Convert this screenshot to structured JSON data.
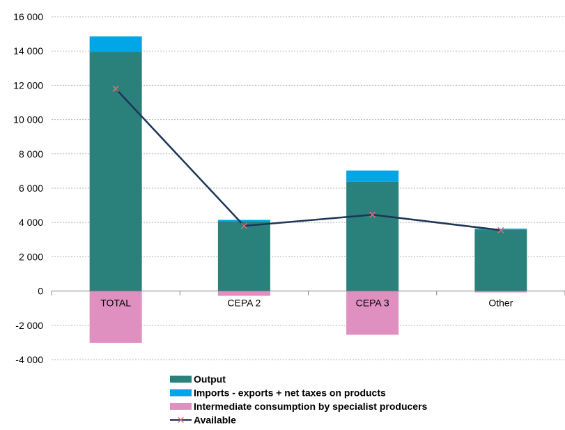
{
  "chart_data": {
    "type": "bar",
    "stacked": true,
    "categories": [
      "TOTAL",
      "CEPA 2",
      "CEPA 3",
      "Other"
    ],
    "series": [
      {
        "name": "Output",
        "kind": "bar",
        "color": "#2a807b",
        "values": [
          13950,
          4050,
          6380,
          3560
        ]
      },
      {
        "name": "Imports - exports + net taxes on products",
        "kind": "bar",
        "color": "#00a6e6",
        "values": [
          900,
          100,
          650,
          80
        ]
      },
      {
        "name": "Intermediate consumption by specialist producers",
        "kind": "bar",
        "color": "#e090c0",
        "values": [
          -3020,
          -280,
          -2550,
          -80
        ]
      },
      {
        "name": "Available",
        "kind": "line",
        "color": "#1d3557",
        "marker_color": "#e0707a",
        "values": [
          11800,
          3800,
          4450,
          3550
        ]
      }
    ],
    "ylim": [
      -4000,
      16000
    ],
    "yticks": [
      -4000,
      -2000,
      0,
      2000,
      4000,
      6000,
      8000,
      10000,
      12000,
      14000,
      16000
    ],
    "ytick_labels": [
      "-4 000",
      "-2 000",
      "0",
      "2 000",
      "4 000",
      "6 000",
      "8 000",
      "10 000",
      "12 000",
      "14 000",
      "16 000"
    ],
    "grid": true,
    "legend_position": "bottom",
    "title": "",
    "xlabel": "",
    "ylabel": ""
  }
}
